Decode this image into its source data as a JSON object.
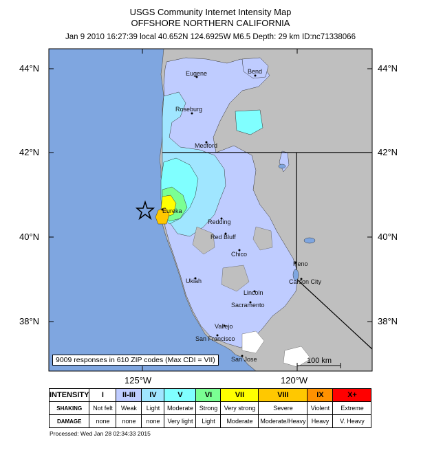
{
  "title": {
    "line1": "USGS Community Internet Intensity Map",
    "line2": "OFFSHORE NORTHERN CALIFORNIA",
    "line3": "Jan 9 2010 16:27:39 local 40.652N 124.6925W M6.5 Depth: 29 km ID:nc71338066"
  },
  "axes": {
    "lat_labels": [
      "44°N",
      "42°N",
      "40°N",
      "38°N"
    ],
    "lon_labels": [
      "125°W",
      "120°W"
    ]
  },
  "cities": [
    "Bend",
    "Eugene",
    "Roseburg",
    "Medford",
    "Eureka",
    "Redding",
    "Red Bluff",
    "Chico",
    "Reno",
    "Carson City",
    "Ukiah",
    "Lincoln",
    "Sacramento",
    "Vallejo",
    "San Francisco",
    "San Jose"
  ],
  "responses_text": "9009 responses in 610 ZIP codes (Max CDI = VII)",
  "scale_text": "100 km",
  "colors": {
    "ocean": "#7fa6e0",
    "land": "#bfbfbf",
    "i2": "#bfccff",
    "i3": "#a0e6ff",
    "i4": "#80ffff",
    "i5": "#7aff93",
    "i6": "#ffff00",
    "i7": "#ffc800",
    "i8": "#ff9100",
    "i9": "#ff0000",
    "i10": "#c80000"
  },
  "legend": {
    "row_labels": [
      "INTENSITY",
      "SHAKING",
      "DAMAGE"
    ],
    "intensity": [
      "I",
      "II-III",
      "IV",
      "V",
      "VI",
      "VII",
      "VIII",
      "IX",
      "X+"
    ],
    "shaking": [
      "Not felt",
      "Weak",
      "Light",
      "Moderate",
      "Strong",
      "Very strong",
      "Severe",
      "Violent",
      "Extreme"
    ],
    "damage": [
      "none",
      "none",
      "none",
      "Very light",
      "Light",
      "Moderate",
      "Moderate/Heavy",
      "Heavy",
      "V. Heavy"
    ],
    "colors": [
      "#ffffff",
      "#bfccff",
      "#a0e6ff",
      "#80ffff",
      "#7aff93",
      "#ffff00",
      "#ffc800",
      "#ff9100",
      "#ff0000",
      "#c80000"
    ]
  },
  "processed": "Processed: Wed Jan 28 02:34:33 2015"
}
